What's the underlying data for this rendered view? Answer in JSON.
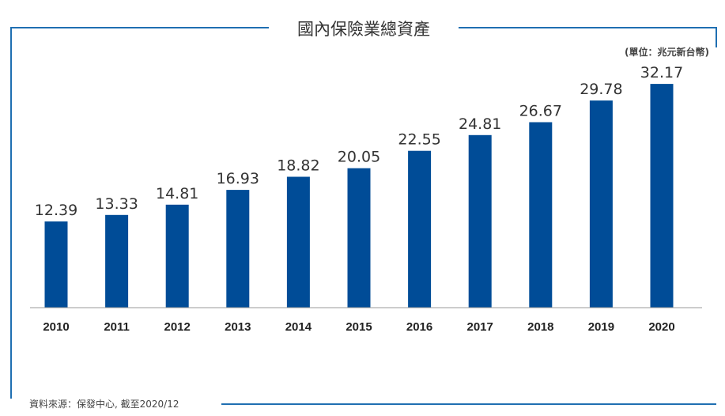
{
  "colors": {
    "bar": "#004c97",
    "frame": "#1f6fb2"
  },
  "chart_data": {
    "type": "bar",
    "title": "國內保險業總資產",
    "unit_note": "(單位：兆元新台幣)",
    "source": "資料來源：保發中心, 截至2020/12",
    "categories": [
      "2010",
      "2011",
      "2012",
      "2013",
      "2014",
      "2015",
      "2016",
      "2017",
      "2018",
      "2019",
      "2020"
    ],
    "values": [
      12.39,
      13.33,
      14.81,
      16.93,
      18.82,
      20.05,
      22.55,
      24.81,
      26.67,
      29.78,
      32.17
    ],
    "value_labels": [
      "12.39",
      "13.33",
      "14.81",
      "16.93",
      "18.82",
      "20.05",
      "22.55",
      "24.81",
      "26.67",
      "29.78",
      "32.17"
    ],
    "ylim": [
      0,
      34
    ],
    "grid": false,
    "legend": "none"
  }
}
